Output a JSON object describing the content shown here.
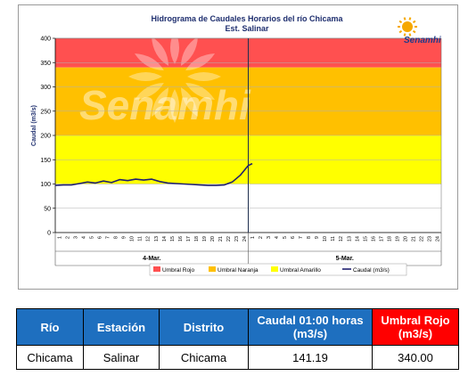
{
  "chart_data": {
    "type": "line",
    "title": "Hidrograma de Caudales Horarios del río Chicama",
    "subtitle": "Est. Salinar",
    "ylabel": "Caudal  (m3/s)",
    "ylim": [
      0,
      400
    ],
    "yticks": [
      0,
      50,
      100,
      150,
      200,
      250,
      300,
      350,
      400
    ],
    "xlim": [
      0,
      48
    ],
    "hour_labels": [
      "1",
      "2",
      "3",
      "4",
      "5",
      "6",
      "7",
      "8",
      "9",
      "10",
      "11",
      "12",
      "13",
      "14",
      "15",
      "16",
      "17",
      "18",
      "19",
      "20",
      "21",
      "22",
      "23",
      "24"
    ],
    "days": [
      "4-Mar.",
      "5-Mar."
    ],
    "thresholds": [
      {
        "name": "Umbral Rojo",
        "from": 340,
        "to": 400,
        "color": "#ff5050"
      },
      {
        "name": "Umbral Naranja",
        "from": 200,
        "to": 340,
        "color": "#ffc000"
      },
      {
        "name": "Umbral Amarillo",
        "from": 100,
        "to": 200,
        "color": "#ffff00"
      }
    ],
    "series": [
      {
        "name": "Caudal (m3/s)",
        "color": "#1f1f6f",
        "x": [
          0,
          1,
          2,
          3,
          4,
          5,
          6,
          7,
          8,
          9,
          10,
          11,
          12,
          13,
          14,
          15,
          16,
          17,
          18,
          19,
          20,
          21,
          22,
          23,
          23.5,
          24,
          24.5
        ],
        "values": [
          97,
          98,
          98,
          101,
          104,
          102,
          106,
          103,
          109,
          107,
          110,
          108,
          110,
          105,
          102,
          101,
          100,
          99,
          98,
          97,
          97,
          98,
          104,
          118,
          128,
          138,
          142
        ]
      }
    ],
    "legend": [
      "Umbral Rojo",
      "Umbral Naranja",
      "Umbral Amarillo",
      "Caudal (m3/s)"
    ],
    "legend_position": "bottom",
    "watermark": "Senamhi",
    "logo_text": "Senamhi"
  },
  "table": {
    "headers": {
      "rio": "Río",
      "estacion": "Estación",
      "distrito": "Distrito",
      "caudal_l1": "Caudal  01:00 horas",
      "caudal_l2": "(m3/s)",
      "umbral_l1": "Umbral Rojo",
      "umbral_l2": "(m3/s)"
    },
    "row": {
      "rio": "Chicama",
      "estacion": "Salinar",
      "distrito": "Chicama",
      "caudal": "141.19",
      "umbral": "340.00"
    },
    "colors": {
      "header": "#1e6fbf",
      "alert": "#ff0000"
    }
  }
}
